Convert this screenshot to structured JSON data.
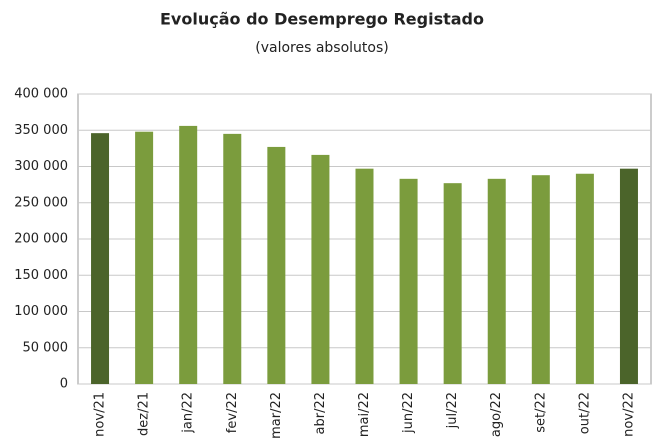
{
  "chart_data": {
    "type": "bar",
    "title": "Evolução do Desemprego Registado",
    "subtitle": "(valores absolutos)",
    "categories": [
      "nov/21",
      "dez/21",
      "jan/22",
      "fev/22",
      "mar/22",
      "abr/22",
      "mai/22",
      "jun/22",
      "jul/22",
      "ago/22",
      "set/22",
      "out/22",
      "nov/22"
    ],
    "values": [
      346000,
      348000,
      356000,
      345000,
      327000,
      316000,
      297000,
      283000,
      277000,
      283000,
      288000,
      290000,
      297000
    ],
    "colors": [
      "#4b642a",
      "#7b9c3d",
      "#7b9c3d",
      "#7b9c3d",
      "#7b9c3d",
      "#7b9c3d",
      "#7b9c3d",
      "#7b9c3d",
      "#7b9c3d",
      "#7b9c3d",
      "#7b9c3d",
      "#7b9c3d",
      "#4b642a"
    ],
    "ylim": [
      0,
      400000
    ],
    "yticks": [
      0,
      {
        "value": 50000,
        "label": "50 000"
      },
      {
        "value": 100000,
        "label": "100 000"
      },
      {
        "value": 150000,
        "label": "150 000"
      },
      {
        "value": 200000,
        "label": "200 000"
      },
      {
        "value": 250000,
        "label": "250 000"
      },
      {
        "value": 300000,
        "label": "300 000"
      },
      {
        "value": 350000,
        "label": "350 000"
      },
      {
        "value": 400000,
        "label": "400 000"
      }
    ],
    "grid": true
  }
}
